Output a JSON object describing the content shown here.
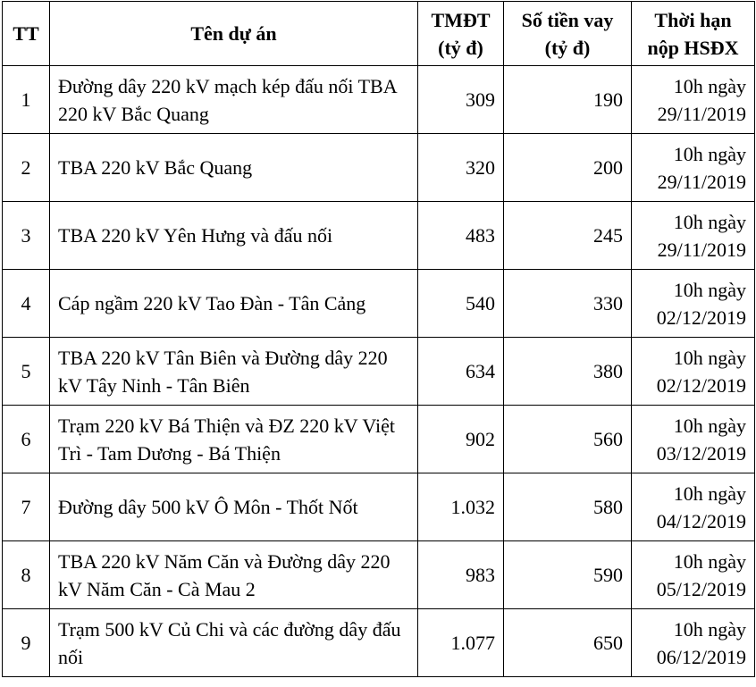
{
  "table": {
    "header": [
      "TT",
      "Tên dự án",
      "TMĐT (tỷ đ)",
      "Số tiền vay (tỷ đ)",
      "Thời hạn nộp HSĐX"
    ],
    "rows": [
      [
        "1",
        "Đường dây 220 kV mạch kép đấu nối TBA 220 kV Bắc Quang",
        "309",
        "190",
        "10h ngày 29/11/2019"
      ],
      [
        "2",
        "TBA 220 kV Bắc Quang",
        "320",
        "200",
        "10h ngày 29/11/2019"
      ],
      [
        "3",
        "TBA 220 kV Yên Hưng và đấu nối",
        "483",
        "245",
        "10h ngày 29/11/2019"
      ],
      [
        "4",
        "Cáp ngầm 220 kV Tao Đàn - Tân Cảng",
        "540",
        "330",
        "10h ngày 02/12/2019"
      ],
      [
        "5",
        "TBA 220 kV Tân Biên và Đường dây 220 kV Tây Ninh - Tân Biên",
        "634",
        "380",
        "10h ngày 02/12/2019"
      ],
      [
        "6",
        "Trạm 220 kV Bá Thiện và ĐZ 220 kV Việt Trì - Tam Dương - Bá Thiện",
        "902",
        "560",
        "10h ngày 03/12/2019"
      ],
      [
        "7",
        "Đường dây 500 kV Ô Môn - Thốt Nốt",
        "1.032",
        "580",
        "10h ngày 04/12/2019"
      ],
      [
        "8",
        "TBA 220 kV Năm Căn và Đường dây 220 kV Năm Căn - Cà Mau 2",
        "983",
        "590",
        "10h ngày 05/12/2019"
      ],
      [
        "9",
        "Trạm 500 kV Củ Chi và các đường dây đấu nối",
        "1.077",
        "650",
        "10h ngày 06/12/2019"
      ]
    ]
  }
}
